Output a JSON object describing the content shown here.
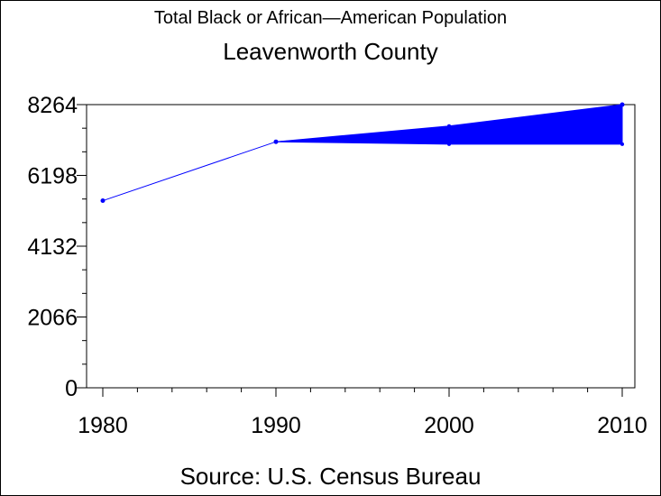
{
  "chart_data": {
    "type": "line",
    "title": "Total Black or African—American Population",
    "subtitle": "Leavenworth County",
    "source": "Source: U.S. Census Bureau",
    "xlabel": "",
    "ylabel": "",
    "x": [
      1980,
      1990,
      2000,
      2010
    ],
    "series": [
      {
        "values": [
          5460,
          7180,
          7540,
          8264
        ]
      }
    ],
    "range_band": {
      "x": [
        1990,
        2000,
        2010
      ],
      "low": [
        7180,
        7110,
        7110
      ],
      "high": [
        7180,
        7640,
        8264
      ]
    },
    "xlim": [
      1980,
      2010
    ],
    "ylim": [
      0,
      8264
    ],
    "x_ticks": [
      "1980",
      "1990",
      "2000",
      "2010"
    ],
    "y_ticks": [
      "0",
      "2066",
      "4132",
      "6198",
      "8264"
    ],
    "grid": false,
    "legend": "none",
    "colors": {
      "series": "#0000ff",
      "axes": "#000000"
    }
  }
}
